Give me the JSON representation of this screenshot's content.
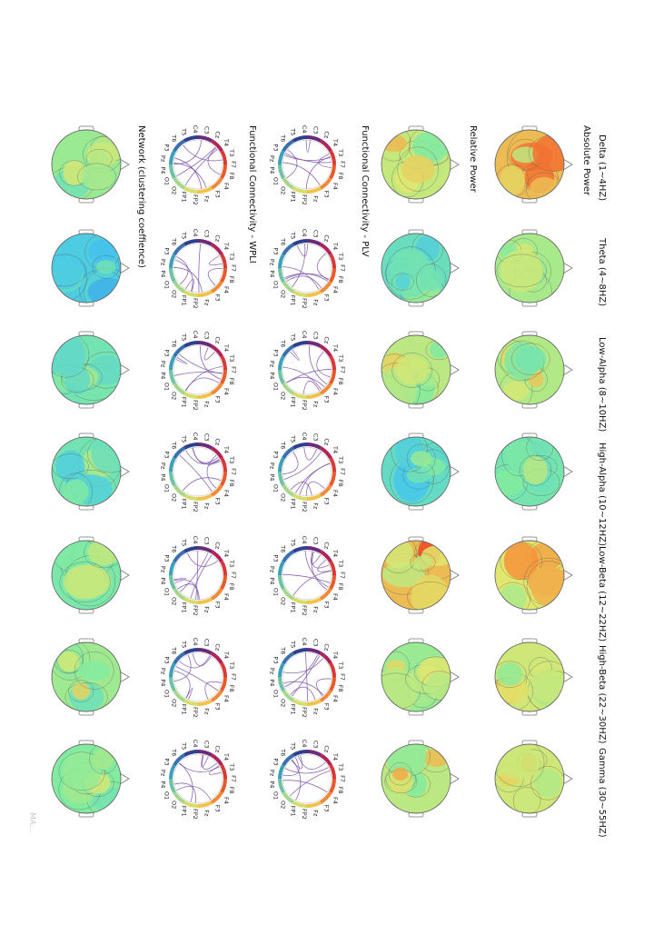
{
  "page": {
    "rotation": "90deg clockwise",
    "background": "#ffffff",
    "watermark": "MA..."
  },
  "bands": [
    "Delta (1~4HZ)",
    "Theta (4~8HZ)",
    "Low-Alpha (8~10HZ)",
    "High-Alpha (10~12HZ)",
    "Low-Beta (12~22HZ)",
    "High-Beta (22~30HZ)",
    "Gamma (30~55HZ)"
  ],
  "rows": [
    {
      "label": "Absolute Power",
      "kind": "topomap"
    },
    {
      "label": "Relative Power",
      "kind": "topomap"
    },
    {
      "label": "Functional Connectivity - PLV",
      "kind": "connectivity"
    },
    {
      "label": "Functional Connectivity - WPLI",
      "kind": "connectivity"
    },
    {
      "label": "Network (clustering coeffience)",
      "kind": "topomap"
    }
  ],
  "electrodes": [
    "F7",
    "F8",
    "F4",
    "F3",
    "Fz",
    "FP2",
    "FP1",
    "O2",
    "O1",
    "P4",
    "Pz",
    "P3",
    "T6",
    "T5",
    "C4",
    "C3",
    "Cz",
    "T4",
    "T3"
  ],
  "colormap": "rainbow (blue–cyan–green–yellow–red)",
  "colors": {
    "low": "#3a7fe0",
    "mid": "#7ee8a0",
    "high": "#f03020",
    "contour": "#555555",
    "connection": "#7a4fa8"
  },
  "topomap_levels": {
    "absolute_power": [
      0.78,
      0.58,
      0.6,
      0.45,
      0.7,
      0.66,
      0.66
    ],
    "relative_power": [
      0.64,
      0.4,
      0.62,
      0.38,
      0.78,
      0.55,
      0.62
    ],
    "network": [
      0.55,
      0.28,
      0.44,
      0.44,
      0.47,
      0.56,
      0.5
    ]
  }
}
